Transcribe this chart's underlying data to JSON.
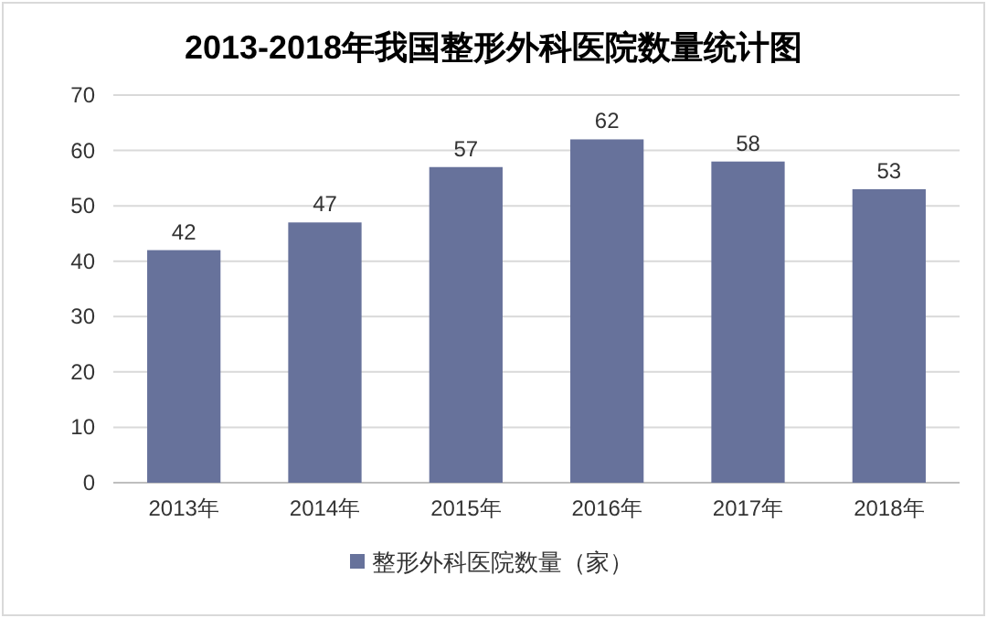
{
  "chart_data": {
    "type": "bar",
    "title": "2013-2018年我国整形外科医院数量统计图",
    "categories": [
      "2013年",
      "2014年",
      "2015年",
      "2016年",
      "2017年",
      "2018年"
    ],
    "series": [
      {
        "name": "整形外科医院数量（家）",
        "color": "#67729b",
        "values": [
          42,
          47,
          57,
          62,
          58,
          53
        ]
      }
    ],
    "ylim": [
      0,
      70
    ],
    "yticks": [
      0,
      10,
      20,
      30,
      40,
      50,
      60,
      70
    ],
    "grid": "y",
    "legend": "bottom",
    "data_labels": true
  }
}
